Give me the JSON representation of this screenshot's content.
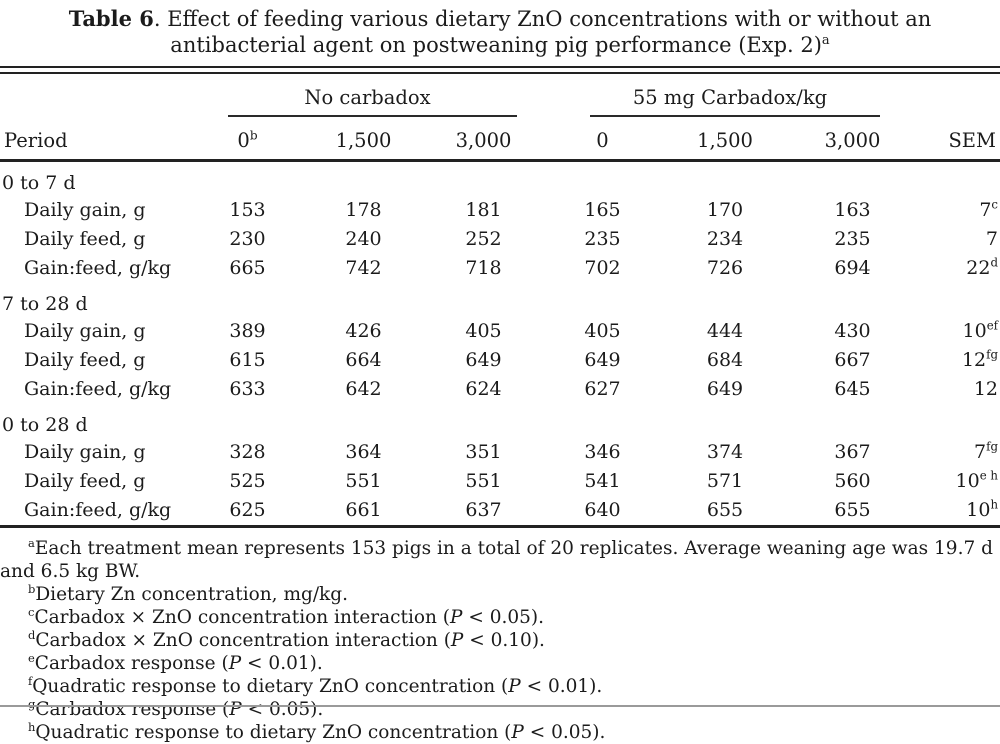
{
  "title": "*{Table 6}. Effect of feeding various dietary ZnO concentrations with or without an antibacterial agent on postweaning pig performance (Exp. 2)^{a}",
  "table": {
    "spanners": [
      {
        "label": "No carbadox"
      },
      {
        "label": "55 mg Carbadox/kg"
      }
    ],
    "columns": [
      "Period",
      "0^{b}",
      "1,500",
      "3,000",
      "0",
      "1,500",
      "3,000",
      "SEM"
    ],
    "sections": [
      {
        "label": "0 to 7 d",
        "rows": [
          {
            "label": "Daily gain, g",
            "values": [
              "153",
              "178",
              "181",
              "165",
              "170",
              "163",
              "7^{c}"
            ]
          },
          {
            "label": "Daily feed, g",
            "values": [
              "230",
              "240",
              "252",
              "235",
              "234",
              "235",
              "7"
            ]
          },
          {
            "label": "Gain:feed, g/kg",
            "values": [
              "665",
              "742",
              "718",
              "702",
              "726",
              "694",
              "22^{d}"
            ]
          }
        ]
      },
      {
        "label": "7 to 28 d",
        "rows": [
          {
            "label": "Daily gain, g",
            "values": [
              "389",
              "426",
              "405",
              "405",
              "444",
              "430",
              "10^{ef}"
            ]
          },
          {
            "label": "Daily feed, g",
            "values": [
              "615",
              "664",
              "649",
              "649",
              "684",
              "667",
              "12^{fg}"
            ]
          },
          {
            "label": "Gain:feed, g/kg",
            "values": [
              "633",
              "642",
              "624",
              "627",
              "649",
              "645",
              "12"
            ]
          }
        ]
      },
      {
        "label": "0 to 28 d",
        "rows": [
          {
            "label": "Daily gain, g",
            "values": [
              "328",
              "364",
              "351",
              "346",
              "374",
              "367",
              "7^{fg}"
            ]
          },
          {
            "label": "Daily feed, g",
            "values": [
              "525",
              "551",
              "551",
              "541",
              "571",
              "560",
              "10^{e h}"
            ]
          },
          {
            "label": "Gain:feed, g/kg",
            "values": [
              "625",
              "661",
              "637",
              "640",
              "655",
              "655",
              "10^{h}"
            ]
          }
        ]
      }
    ]
  },
  "footnotes": [
    "^{a}Each treatment mean represents 153 pigs in a total of 20 replicates. Average weaning age was 19.7 d and 6.5 kg BW.",
    "^{b}Dietary Zn concentration, mg/kg.",
    "^{c}Carbadox × ZnO concentration interaction (~{P} < 0.05).",
    "^{d}Carbadox × ZnO concentration interaction (~{P} < 0.10).",
    "^{e}Carbadox response (~{P} < 0.01).",
    "^{f}Quadratic response to dietary ZnO concentration (~{P} < 0.01).",
    "^{g}Carbadox response (~{P} < 0.05).",
    "^{h}Quadratic response to dietary ZnO concentration (~{P} < 0.05)."
  ]
}
